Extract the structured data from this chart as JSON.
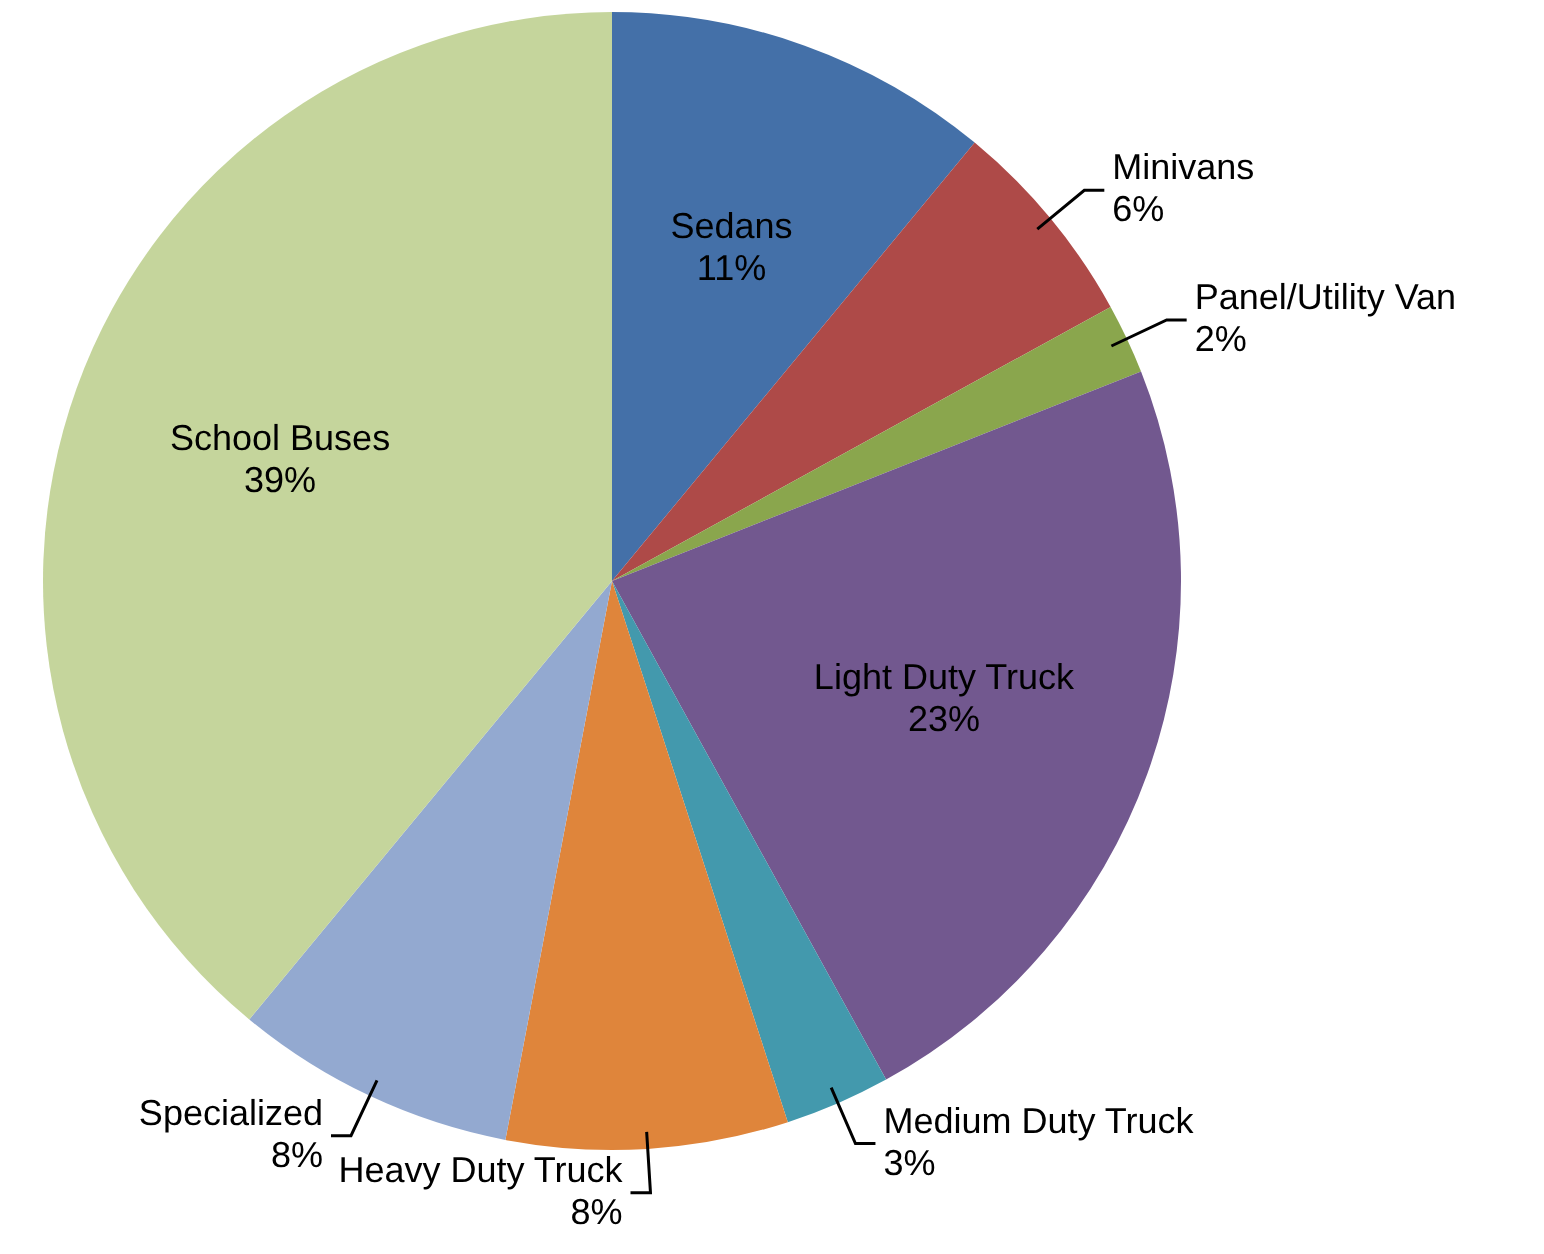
{
  "chart_data": {
    "type": "pie",
    "categories": [
      "Sedans",
      "Minivans",
      "Panel/Utility Van",
      "Light Duty Truck",
      "Medium Duty Truck",
      "Heavy Duty Truck",
      "Specialized",
      "School Buses"
    ],
    "values": [
      11,
      6,
      2,
      23,
      3,
      8,
      8,
      39
    ],
    "value_labels": [
      "11%",
      "6%",
      "2%",
      "23%",
      "3%",
      "8%",
      "8%",
      "39%"
    ],
    "colors": [
      "#4470a8",
      "#ae4a48",
      "#8aa64d",
      "#72588f",
      "#4399ad",
      "#df853b",
      "#93a9d0",
      "#c5d59c"
    ],
    "legend": false
  }
}
